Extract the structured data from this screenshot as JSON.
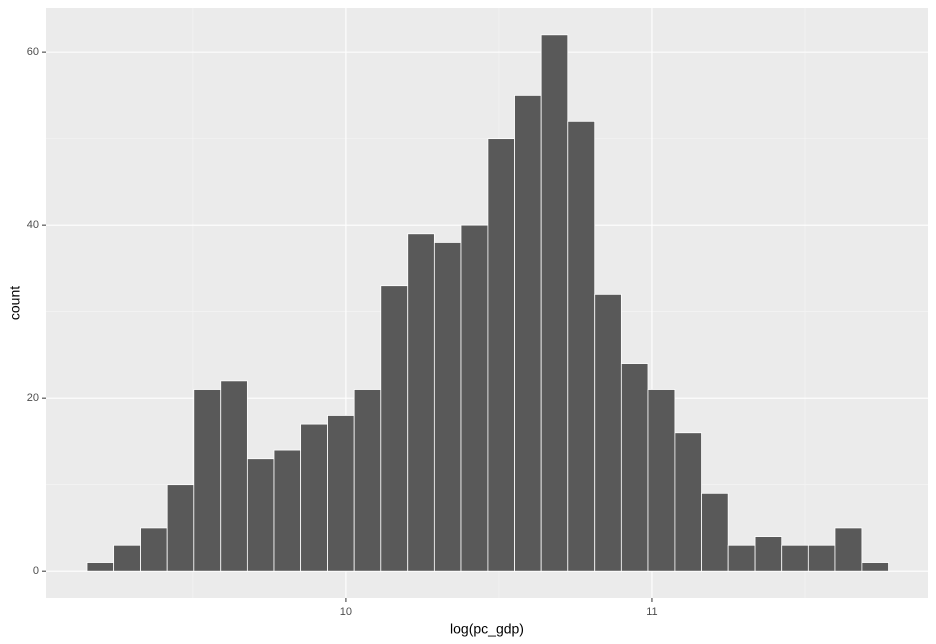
{
  "chart_data": {
    "type": "histogram",
    "x_label": "log(pc_gdp)",
    "y_label": "count",
    "bins": [
      9.154,
      9.241,
      9.329,
      9.416,
      9.503,
      9.591,
      9.678,
      9.765,
      9.852,
      9.94,
      10.027,
      10.114,
      10.202,
      10.289,
      10.376,
      10.464,
      10.551,
      10.638,
      10.725,
      10.813,
      10.9,
      10.987,
      11.075,
      11.162,
      11.249,
      11.337,
      11.424,
      11.511,
      11.598,
      11.686,
      11.773
    ],
    "values": [
      1,
      3,
      5,
      10,
      21,
      22,
      13,
      14,
      17,
      18,
      21,
      33,
      39,
      38,
      40,
      50,
      55,
      62,
      52,
      32,
      24,
      21,
      16,
      9,
      3,
      4,
      3,
      3,
      5,
      1
    ],
    "color": "#595959",
    "xlim": [
      9.02,
      11.902
    ],
    "xticks": [
      10,
      11
    ],
    "ylim": [
      -3.1,
      65.1
    ],
    "yticks": [
      0,
      20,
      40,
      60
    ],
    "grid": true
  }
}
